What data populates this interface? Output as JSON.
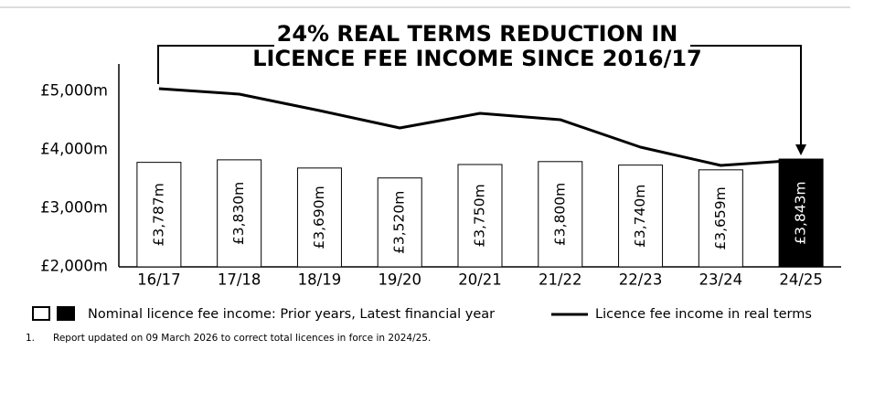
{
  "chart_data": {
    "type": "bar_line",
    "title": [
      "24% REAL TERMS REDUCTION IN",
      "LICENCE FEE INCOME SINCE 2016/17"
    ],
    "categories": [
      "16/17",
      "17/18",
      "18/19",
      "19/20",
      "20/21",
      "21/22",
      "22/23",
      "23/24",
      "24/25"
    ],
    "series": [
      {
        "name": "Nominal licence fee income: Prior years, Latest financial year",
        "type": "bar",
        "color": "#ffffff",
        "latest_color": "#000000",
        "values": [
          3787,
          3830,
          3690,
          3520,
          3750,
          3800,
          3740,
          3659,
          3843
        ],
        "value_labels": [
          "£3,787m",
          "£3,830m",
          "£3,690m",
          "£3,520m",
          "£3,750m",
          "£3,800m",
          "£3,740m",
          "£3,659m",
          "£3,843m"
        ]
      },
      {
        "name": "Licence fee income in real terms",
        "type": "line",
        "color": "#000000",
        "values": [
          5047,
          4953,
          4672,
          4375,
          4625,
          4516,
          4047,
          3734,
          3828
        ]
      }
    ],
    "ylim": [
      2000,
      5500
    ],
    "yticks": [
      {
        "value": 2000,
        "label": "£2,000m"
      },
      {
        "value": 3000,
        "label": "£3,000m"
      },
      {
        "value": 4000,
        "label": "£4,000m"
      },
      {
        "value": 5000,
        "label": "£5,000m"
      }
    ],
    "footnote": {
      "marker": "1.",
      "text": "Report updated on 09 March 2026 to correct total licences in force in 2024/25."
    }
  }
}
